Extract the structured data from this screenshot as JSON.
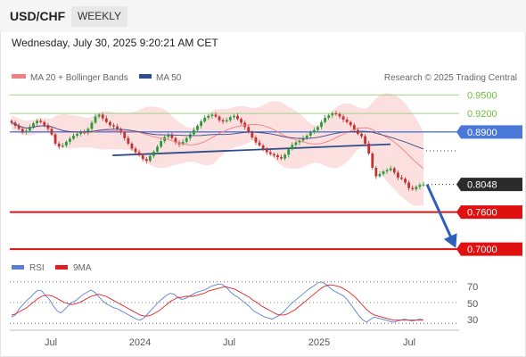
{
  "header": {
    "symbol": "USD/CHF",
    "timeframe": "WEEKLY",
    "datetime": "Wednesday, July 30, 2025 9:20:21 AM CET"
  },
  "legend": {
    "items": [
      {
        "label": "MA 20 + Bollinger Bands",
        "color": "#f08080"
      },
      {
        "label": "MA 50",
        "color": "#2e4d8c"
      }
    ],
    "credit": "Research © 2025 Trading Central"
  },
  "rsi_legend": {
    "items": [
      {
        "label": "RSI",
        "color": "#5b7fd6"
      },
      {
        "label": "9MA",
        "color": "#e02020"
      }
    ]
  },
  "levels": [
    {
      "label": "0.9500",
      "style": "green-text"
    },
    {
      "label": "0.9200",
      "style": "green-text"
    },
    {
      "label": "0.8900",
      "style": "blue-box"
    },
    {
      "label": "0.8048",
      "style": "dark-box"
    },
    {
      "label": "0.7600",
      "style": "red-box"
    },
    {
      "label": "0.7000",
      "style": "red-box"
    }
  ],
  "rsi_axis": [
    "70",
    "50",
    "30"
  ],
  "x_axis": [
    "Jul",
    "2024",
    "Jul",
    "2025",
    "Jul"
  ],
  "colors": {
    "up": "#2a9a3a",
    "down": "#c23030",
    "bollinger_fill": "#fbd9d9",
    "ma20": "#f08080",
    "ma50": "#3b4a8a",
    "resistance_green": "#9fd38a",
    "support_red": "#e01010",
    "pivot_blue": "#4a78d8",
    "trendline": "#2e4d8c",
    "rsi": "#5b7fd6",
    "rsi_ma": "#e02020"
  },
  "chart_data": [
    {
      "type": "line",
      "note": "weekly price with pivot/support/resistance levels",
      "levels": [
        0.95,
        0.92,
        0.89,
        0.8048,
        0.76,
        0.7
      ],
      "last_price": 0.8048,
      "ylim": [
        0.69,
        0.965
      ],
      "x_labels": [
        "Jul",
        "2024",
        "Jul",
        "2025",
        "Jul"
      ],
      "series": [
        {
          "name": "",
          "values": [
            0.905,
            0.9,
            0.895,
            0.89,
            0.892,
            0.898,
            0.904,
            0.908,
            0.906,
            0.901,
            0.895,
            0.886,
            0.871,
            0.866,
            0.868,
            0.874,
            0.879,
            0.884,
            0.887,
            0.89,
            0.888,
            0.895,
            0.905,
            0.915,
            0.918,
            0.912,
            0.906,
            0.901,
            0.899,
            0.895,
            0.889,
            0.88,
            0.871,
            0.863,
            0.857,
            0.852,
            0.846,
            0.843,
            0.851,
            0.858,
            0.866,
            0.875,
            0.882,
            0.885,
            0.88,
            0.873,
            0.87,
            0.874,
            0.88,
            0.886,
            0.893,
            0.9,
            0.907,
            0.913,
            0.916,
            0.918,
            0.915,
            0.909,
            0.907,
            0.909,
            0.914,
            0.916,
            0.911,
            0.905,
            0.898,
            0.89,
            0.881,
            0.873,
            0.868,
            0.862,
            0.857,
            0.854,
            0.852,
            0.849,
            0.847,
            0.853,
            0.862,
            0.869,
            0.873,
            0.876,
            0.88,
            0.884,
            0.889,
            0.893,
            0.898,
            0.906,
            0.913,
            0.917,
            0.92,
            0.919,
            0.915,
            0.91,
            0.906,
            0.901,
            0.893,
            0.887,
            0.883,
            0.871,
            0.855,
            0.832,
            0.818,
            0.822,
            0.826,
            0.828,
            0.831,
            0.824,
            0.816,
            0.814,
            0.808,
            0.799,
            0.797,
            0.801,
            0.804,
            0.8048
          ]
        }
      ],
      "trendline": {
        "x_from": 0.245,
        "x_to": 0.92,
        "y_from": 0.852,
        "y_to": 0.87
      }
    },
    {
      "type": "line",
      "title": "",
      "yticks": [
        70,
        50,
        30
      ],
      "ylim": [
        25,
        75
      ],
      "series": [
        {
          "name": "RSI",
          "values": [
            36,
            38,
            44,
            48,
            52,
            55,
            59,
            62,
            61,
            57,
            53,
            47,
            42,
            40,
            43,
            47,
            50,
            52,
            55,
            58,
            60,
            62,
            60,
            56,
            52,
            49,
            47,
            45,
            44,
            42,
            40,
            38,
            36,
            34,
            33,
            35,
            39,
            43,
            47,
            51,
            54,
            57,
            59,
            58,
            55,
            53,
            54,
            56,
            58,
            60,
            61,
            62,
            64,
            66,
            67,
            68,
            67,
            64,
            60,
            57,
            55,
            52,
            49,
            46,
            42,
            40,
            38,
            36,
            35,
            34,
            36,
            38,
            41,
            45,
            49,
            52,
            55,
            58,
            61,
            64,
            66,
            69,
            70,
            68,
            65,
            62,
            60,
            58,
            56,
            52,
            47,
            42,
            37,
            33,
            31,
            34,
            36,
            35,
            34,
            33,
            32,
            31,
            32,
            33,
            34,
            33,
            32,
            33,
            34,
            33
          ]
        },
        {
          "name": "9MA",
          "values": [
            38,
            39,
            41,
            43,
            45,
            48,
            51,
            54,
            56,
            57,
            57,
            56,
            54,
            52,
            50,
            49,
            48,
            49,
            50,
            52,
            54,
            56,
            57,
            58,
            57,
            56,
            54,
            52,
            50,
            48,
            46,
            44,
            42,
            40,
            38,
            37,
            37,
            38,
            40,
            42,
            45,
            48,
            51,
            53,
            55,
            55,
            56,
            56,
            56,
            57,
            58,
            59,
            61,
            62,
            63,
            64,
            65,
            65,
            64,
            63,
            61,
            59,
            57,
            55,
            52,
            50,
            47,
            45,
            43,
            41,
            39,
            38,
            38,
            39,
            41,
            43,
            46,
            49,
            52,
            55,
            58,
            61,
            64,
            66,
            67,
            67,
            66,
            65,
            63,
            61,
            58,
            55,
            51,
            47,
            43,
            40,
            38,
            37,
            36,
            35,
            34,
            33,
            33,
            33,
            33,
            33,
            33,
            33,
            33,
            33
          ]
        }
      ]
    }
  ]
}
